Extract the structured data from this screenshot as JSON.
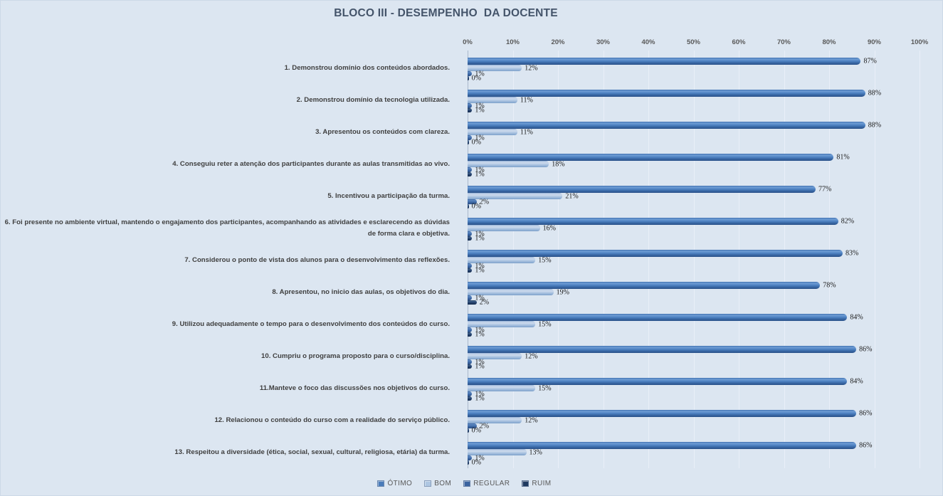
{
  "title": "BLOCO III - DESEMPENHO  DA DOCENTE",
  "chart_data": {
    "type": "bar",
    "orientation": "horizontal",
    "title": "BLOCO III - DESEMPENHO  DA DOCENTE",
    "xlim": [
      0,
      100
    ],
    "x_ticks": [
      "0%",
      "10%",
      "20%",
      "30%",
      "40%",
      "50%",
      "60%",
      "70%",
      "80%",
      "90%",
      "100%"
    ],
    "grid": true,
    "legend_position": "bottom",
    "value_suffix": "%",
    "categories": [
      "1. Demonstrou domínio dos conteúdos abordados.",
      "2. Demonstrou domínio da tecnologia utilizada.",
      "3. Apresentou os conteúdos com clareza.",
      "4. Conseguiu reter a atenção dos participantes durante as aulas transmitidas ao vivo.",
      "5. Incentivou a participação da turma.",
      "6. Foi presente no ambiente virtual, mantendo o engajamento dos participantes, acompanhando as atividades e esclarecendo as dúvidas de forma clara e objetiva.",
      "7. Considerou o ponto de vista dos alunos para o desenvolvimento das reflexões.",
      "8. Apresentou, no inicio das aulas, os objetivos do dia.",
      "9. Utilizou adequadamente o tempo para o desenvolvimento dos conteúdos do curso.",
      "10. Cumpriu o programa proposto para o curso/disciplina.",
      "11.Manteve o foco das discussões nos objetivos do curso.",
      "12. Relacionou o conteúdo do curso com a realidade do serviço público.",
      "13. Respeitou a diversidade (ética, social, sexual, cultural, religiosa, etária) da turma."
    ],
    "series": [
      {
        "name": "ÓTIMO",
        "color": "#4a7cba",
        "values": [
          87,
          88,
          88,
          81,
          77,
          82,
          83,
          78,
          84,
          86,
          84,
          86,
          86
        ]
      },
      {
        "name": "BOM",
        "color": "#aec6e2",
        "values": [
          12,
          11,
          11,
          18,
          21,
          16,
          15,
          19,
          15,
          12,
          15,
          12,
          13
        ]
      },
      {
        "name": "REGULAR",
        "color": "#3a639f",
        "values": [
          1,
          1,
          1,
          1,
          2,
          1,
          1,
          1,
          1,
          1,
          1,
          2,
          1
        ]
      },
      {
        "name": "RUIM",
        "color": "#1f3a60",
        "values": [
          0,
          1,
          0,
          1,
          0,
          1,
          1,
          2,
          1,
          1,
          1,
          0,
          0
        ]
      }
    ]
  },
  "colors": {
    "background": "#dce6f1",
    "title": "#44546a",
    "axis_line": "#a9b8cc",
    "gridline": "#e9eff8",
    "tick_text": "#595959",
    "category_text": "#3f3f3f",
    "value_text": "#1a1a1a"
  }
}
